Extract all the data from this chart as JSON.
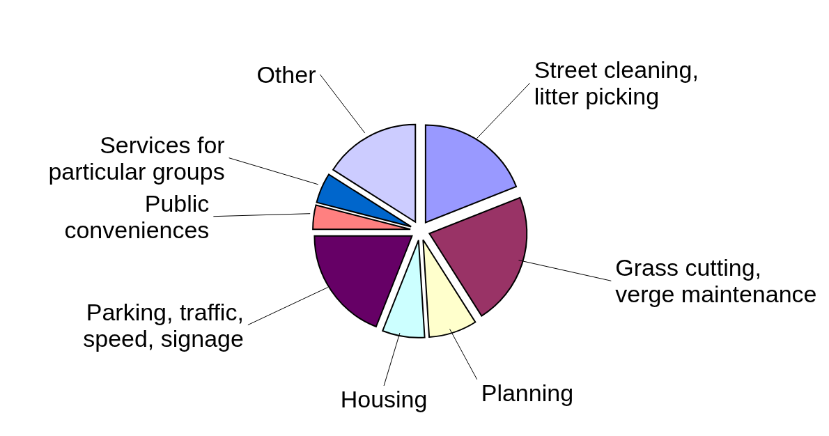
{
  "chart_data": {
    "type": "pie",
    "categories": [
      "Street cleaning, litter picking",
      "Grass cutting, verge maintenance",
      "Planning",
      "Housing",
      "Parking, traffic, speed, signage",
      "Public conveniences",
      "Services for particular groups",
      "Other"
    ],
    "values": [
      19,
      22,
      8,
      7,
      19,
      4,
      5,
      16
    ],
    "colors": [
      "#9999ff",
      "#993366",
      "#ffffcc",
      "#ccffff",
      "#660066",
      "#ff8080",
      "#0066cc",
      "#ccccff"
    ]
  }
}
